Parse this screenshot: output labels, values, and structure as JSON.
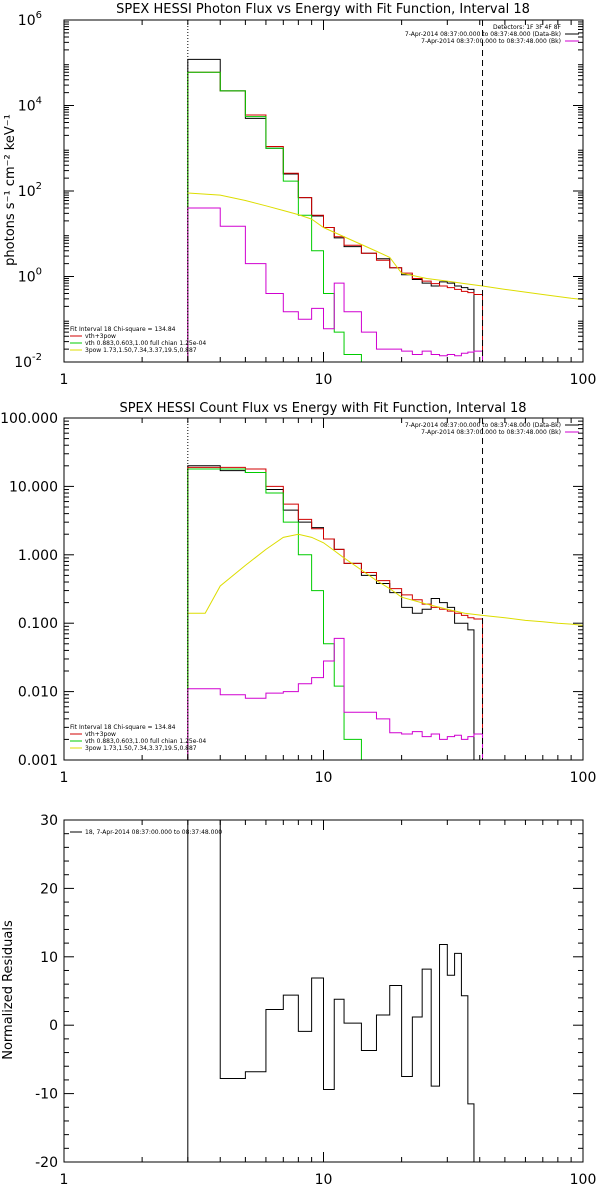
{
  "chart_data": [
    {
      "type": "line",
      "title": "SPEX HESSI Photon Flux vs Energy with Fit Function, Interval 18",
      "ylabel": "photons s⁻¹ cm⁻² keV⁻¹",
      "xscale": "log",
      "yscale": "log",
      "xlim": [
        1,
        100
      ],
      "ylim": [
        0.01,
        1000000
      ],
      "xticks": [
        1,
        10,
        100
      ],
      "xticklabels": [
        "1",
        "10",
        "100"
      ],
      "yticks": [
        0.01,
        1,
        100,
        10000,
        1000000
      ],
      "ytick_base": "10",
      "ytick_exponents": [
        "-2",
        "0",
        "2",
        "4",
        "6"
      ],
      "vlines": [
        {
          "x": 3.0,
          "style": "dotted"
        },
        {
          "x": 41.0,
          "style": "dashed"
        }
      ],
      "header": [
        "Detectors: 1F 3F 4F 8F",
        "7-Apr-2014 08:37:00.000 to 08:37:48.000 (Data-Bk)",
        "7-Apr-2014 08:37:00.000 to 08:37:48.000 (Bk)"
      ],
      "header_colors": [
        "",
        "#000000",
        "#d000d0"
      ],
      "legend": [
        "Fit Interval 18   Chi-square = 134.84",
        "vth+3pow",
        "vth 0.883,0.603,1.00  full chian 1.25e-04",
        "3pow 1.73,1.50,7.34,3.37,19.5,0.887"
      ],
      "legend_colors": [
        "",
        "#d00000",
        "#00cc00",
        "#dddd00"
      ],
      "bin_edges": [
        3,
        4,
        5,
        6,
        7,
        8,
        9,
        10,
        11,
        12,
        14,
        16,
        18,
        20,
        22,
        24,
        26,
        28,
        30,
        32,
        34,
        36,
        38,
        41
      ],
      "series": [
        {
          "name": "",
          "color": "#000000",
          "drawstyle": "steps",
          "values": [
            120000,
            22000,
            5000,
            1000,
            250,
            70,
            26,
            14,
            8,
            5,
            3.5,
            2.6,
            1.6,
            1.1,
            0.85,
            0.7,
            0.6,
            0.75,
            0.7,
            0.6,
            0.55,
            0.5,
            0.005
          ]
        },
        {
          "name": "vth+3pow",
          "color": "#d00000",
          "drawstyle": "steps",
          "values": [
            60000,
            22000,
            6000,
            1100,
            260,
            70,
            27,
            14,
            8.5,
            5.4,
            3.5,
            2.4,
            1.6,
            1.2,
            0.9,
            0.78,
            0.68,
            0.6,
            0.55,
            0.5,
            0.45,
            0.42,
            0.38
          ]
        },
        {
          "name": "vth 0.883,0.603,1.00  full chian 1.25e-04",
          "color": "#00cc00",
          "drawstyle": "steps",
          "values": [
            60000,
            22000,
            5500,
            1000,
            170,
            27,
            4,
            0.4,
            0.05,
            0.015,
            0.005
          ]
        },
        {
          "name": "3pow 1.73,1.50,7.34,3.37,19.5,0.887",
          "color": "#dddd00",
          "drawstyle": "line",
          "x": [
            3,
            4,
            5,
            6,
            7,
            8,
            9,
            10,
            12,
            14,
            16,
            18,
            20,
            25,
            30,
            35,
            41,
            50,
            60,
            70,
            80,
            90,
            100
          ],
          "values": [
            90,
            80,
            60,
            45,
            35,
            28,
            22,
            14,
            8.5,
            5.6,
            3.9,
            2.8,
            1.2,
            0.9,
            0.78,
            0.68,
            0.6,
            0.5,
            0.43,
            0.38,
            0.34,
            0.31,
            0.29
          ]
        },
        {
          "name": "Bk",
          "color": "#d000d0",
          "drawstyle": "steps",
          "values": [
            40,
            15,
            2,
            0.4,
            0.15,
            0.1,
            0.18,
            0.06,
            0.7,
            0.15,
            0.05,
            0.02,
            0.02,
            0.018,
            0.015,
            0.018,
            0.015,
            0.014,
            0.015,
            0.014,
            0.016,
            0.017,
            0.018
          ]
        }
      ]
    },
    {
      "type": "line",
      "title": "SPEX HESSI Count Flux vs Energy with Fit Function, Interval 18",
      "ylabel": "",
      "xscale": "log",
      "yscale": "log",
      "xlim": [
        1,
        100
      ],
      "ylim": [
        0.001,
        100
      ],
      "xticks": [
        1,
        10,
        100
      ],
      "xticklabels": [
        "1",
        "10",
        "100"
      ],
      "yticks": [
        0.001,
        0.01,
        0.1,
        1,
        10,
        100
      ],
      "yticklabels": [
        "0.001",
        "0.010",
        "0.100",
        "1.000",
        "10.000",
        "100.000"
      ],
      "vlines": [
        {
          "x": 3.0,
          "style": "dotted"
        },
        {
          "x": 41.0,
          "style": "dashed"
        }
      ],
      "header": [
        "7-Apr-2014 08:37:00.000 to 08:37:48.000 (Data-Bk)",
        "7-Apr-2014 08:37:00.000 to 08:37:48.000 (Bk)"
      ],
      "header_colors": [
        "#000000",
        "#d000d0"
      ],
      "legend": [
        "Fit Interval 18   Chi-square = 134.84",
        "vth+3pow",
        "vth 0.883,0.603,1.00  full chian 1.25e-04",
        "3pow 1.73,1.50,7.34,3.37,19.5,0.887"
      ],
      "legend_colors": [
        "",
        "#d00000",
        "#00cc00",
        "#dddd00"
      ],
      "bin_edges": [
        3,
        4,
        5,
        6,
        7,
        8,
        9,
        10,
        11,
        12,
        14,
        16,
        18,
        20,
        22,
        24,
        26,
        28,
        30,
        32,
        34,
        36,
        38,
        41
      ],
      "series": [
        {
          "name": "",
          "color": "#000000",
          "drawstyle": "steps",
          "values": [
            20,
            17,
            16,
            9,
            4.5,
            3.0,
            2.5,
            1.7,
            1.2,
            0.75,
            0.5,
            0.38,
            0.28,
            0.17,
            0.14,
            0.16,
            0.23,
            0.2,
            0.17,
            0.1,
            0.1,
            0.08,
            0.001
          ]
        },
        {
          "name": "vth+3pow",
          "color": "#d00000",
          "drawstyle": "steps",
          "values": [
            19,
            19,
            18,
            10,
            5.5,
            3.3,
            2.4,
            1.7,
            1.2,
            0.75,
            0.55,
            0.42,
            0.32,
            0.26,
            0.22,
            0.19,
            0.17,
            0.16,
            0.15,
            0.14,
            0.13,
            0.12,
            0.115
          ]
        },
        {
          "name": "vth 0.883,0.603,1.00  full chian 1.25e-04",
          "color": "#00cc00",
          "drawstyle": "steps",
          "values": [
            18,
            18,
            16,
            8,
            3,
            1,
            0.3,
            0.05,
            0.012,
            0.002,
            0.0005
          ]
        },
        {
          "name": "3pow 1.73,1.50,7.34,3.37,19.5,0.887",
          "color": "#dddd00",
          "drawstyle": "line",
          "x": [
            3,
            3.5,
            4,
            5,
            6,
            7,
            8,
            9,
            10,
            11,
            12,
            14,
            16,
            18,
            20,
            25,
            30,
            35,
            41,
            50,
            60,
            70,
            80,
            90,
            100
          ],
          "values": [
            0.14,
            0.14,
            0.35,
            0.7,
            1.2,
            1.8,
            2.0,
            1.8,
            1.5,
            1.15,
            0.9,
            0.6,
            0.42,
            0.32,
            0.24,
            0.19,
            0.16,
            0.14,
            0.13,
            0.12,
            0.11,
            0.105,
            0.1,
            0.097,
            0.093
          ]
        },
        {
          "name": "Bk",
          "color": "#d000d0",
          "drawstyle": "steps",
          "values": [
            0.011,
            0.009,
            0.008,
            0.0095,
            0.01,
            0.013,
            0.016,
            0.028,
            0.06,
            0.005,
            0.005,
            0.004,
            0.0025,
            0.0024,
            0.0026,
            0.0022,
            0.0024,
            0.002,
            0.0022,
            0.0023,
            0.002,
            0.0022,
            0.0024
          ]
        }
      ]
    },
    {
      "type": "line",
      "title": "",
      "ylabel": "Normalized Residuals",
      "xscale": "log",
      "yscale": "linear",
      "xlim": [
        1,
        100
      ],
      "ylim": [
        -20,
        30
      ],
      "xticks": [
        1,
        10,
        100
      ],
      "xticklabels": [
        "1",
        "10",
        "100"
      ],
      "yticks": [
        -20,
        -10,
        0,
        10,
        20,
        30
      ],
      "yticklabels": [
        "-20",
        "-10",
        "0",
        "10",
        "20",
        "30"
      ],
      "legend": [
        "18,  7-Apr-2014 08:37:00.000 to 08:37:48.000"
      ],
      "legend_colors": [
        "#000000"
      ],
      "bin_edges": [
        3,
        4,
        5,
        6,
        7,
        8,
        9,
        10,
        11,
        12,
        14,
        16,
        18,
        20,
        22,
        24,
        26,
        28,
        30,
        32,
        34,
        36,
        38,
        41
      ],
      "series": [
        {
          "name": "",
          "color": "#000000",
          "drawstyle": "steps",
          "values": [
            30,
            -7.8,
            -6.8,
            2.3,
            4.4,
            -0.9,
            6.9,
            -9.4,
            3.8,
            0.3,
            -3.7,
            1.5,
            5.8,
            -7.5,
            1.2,
            8.2,
            -8.9,
            11.8,
            7.3,
            10.5,
            4.3,
            -11.5,
            -20
          ]
        }
      ]
    }
  ]
}
